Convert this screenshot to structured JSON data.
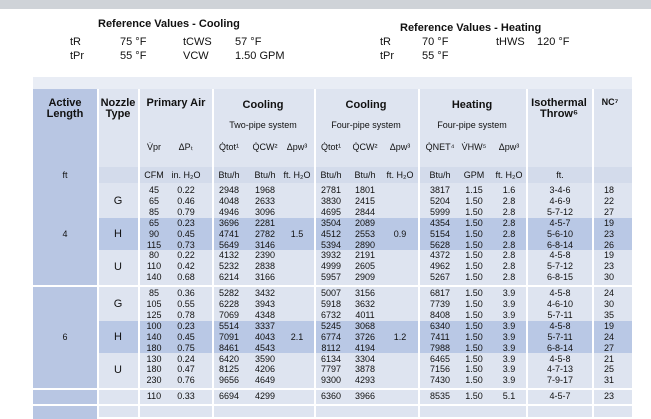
{
  "reference": {
    "cooling": {
      "title": "Reference Values - Cooling",
      "rows": [
        [
          "tR",
          "75 °F",
          "tCWS",
          "57 °F"
        ],
        [
          "tPr",
          "55 °F",
          "VCW",
          "1.50 GPM"
        ]
      ]
    },
    "heating": {
      "title": "Reference Values - Heating",
      "rows": [
        [
          "tR",
          "70 °F",
          "tHWS",
          "120 °F"
        ],
        [
          "tPr",
          "55 °F"
        ]
      ]
    }
  },
  "table": {
    "headers": {
      "length": "Active Length",
      "nozzle": "Nozzle Type",
      "primary": "Primary Air",
      "cooling_two": "Cooling",
      "cooling_four": "Cooling",
      "heating": "Heating",
      "throw": "Isothermal Throw⁶",
      "nc": "NC⁷"
    },
    "subheaders": {
      "cooling_two": "Two-pipe system",
      "cooling_four": "Four-pipe system",
      "heating": "Four-pipe system"
    },
    "symbols": [
      "V̇pr",
      "ΔPₜ",
      "Q̇tot¹",
      "Q̇CW²",
      "Δpw³",
      "Q̇tot¹",
      "Q̇CW²",
      "Δpw³",
      "Q̇NET⁴",
      "V̇HW⁵",
      "Δpw³"
    ],
    "units": [
      "ft",
      "CFM",
      "in. H₂O",
      "Btu/h",
      "Btu/h",
      "ft. H₂O",
      "Btu/h",
      "Btu/h",
      "ft. H₂O",
      "Btu/h",
      "GPM",
      "ft. H₂O",
      "ft."
    ],
    "groups": [
      {
        "length": "4",
        "dp_two": "1.5",
        "dp_four": "0.9",
        "nozzles": [
          {
            "type": "G",
            "rows": [
              [
                "45",
                "0.22",
                "2948",
                "1968",
                "2781",
                "1801",
                "3817",
                "1.15",
                "1.6",
                "3-4-6",
                "18"
              ],
              [
                "65",
                "0.46",
                "4048",
                "2633",
                "3830",
                "2415",
                "5204",
                "1.50",
                "2.8",
                "4-6-9",
                "22"
              ],
              [
                "85",
                "0.79",
                "4946",
                "3096",
                "4695",
                "2844",
                "5999",
                "1.50",
                "2.8",
                "5-7-12",
                "27"
              ]
            ]
          },
          {
            "type": "H",
            "rows": [
              [
                "65",
                "0.23",
                "3696",
                "2281",
                "3504",
                "2089",
                "4354",
                "1.50",
                "2.8",
                "4-5-7",
                "19"
              ],
              [
                "90",
                "0.45",
                "4741",
                "2782",
                "4512",
                "2553",
                "5154",
                "1.50",
                "2.8",
                "5-6-10",
                "23"
              ],
              [
                "115",
                "0.73",
                "5649",
                "3146",
                "5394",
                "2890",
                "5628",
                "1.50",
                "2.8",
                "6-8-14",
                "26"
              ]
            ]
          },
          {
            "type": "U",
            "rows": [
              [
                "80",
                "0.22",
                "4132",
                "2390",
                "3932",
                "2191",
                "4372",
                "1.50",
                "2.8",
                "4-5-8",
                "19"
              ],
              [
                "110",
                "0.42",
                "5232",
                "2838",
                "4999",
                "2605",
                "4962",
                "1.50",
                "2.8",
                "5-7-12",
                "23"
              ],
              [
                "140",
                "0.68",
                "6214",
                "3166",
                "5957",
                "2909",
                "5267",
                "1.50",
                "2.8",
                "6-8-15",
                "30"
              ]
            ]
          }
        ]
      },
      {
        "length": "6",
        "dp_two": "2.1",
        "dp_four": "1.2",
        "nozzles": [
          {
            "type": "G",
            "rows": [
              [
                "85",
                "0.36",
                "5282",
                "3432",
                "5007",
                "3156",
                "6817",
                "1.50",
                "3.9",
                "4-5-8",
                "24"
              ],
              [
                "105",
                "0.55",
                "6228",
                "3943",
                "5918",
                "3632",
                "7739",
                "1.50",
                "3.9",
                "4-6-10",
                "30"
              ],
              [
                "125",
                "0.78",
                "7069",
                "4348",
                "6732",
                "4011",
                "8408",
                "1.50",
                "3.9",
                "5-7-11",
                "35"
              ]
            ]
          },
          {
            "type": "H",
            "rows": [
              [
                "100",
                "0.23",
                "5514",
                "3337",
                "5245",
                "3068",
                "6340",
                "1.50",
                "3.9",
                "4-5-8",
                "19"
              ],
              [
                "140",
                "0.45",
                "7091",
                "4043",
                "6774",
                "3726",
                "7411",
                "1.50",
                "3.9",
                "5-7-11",
                "24"
              ],
              [
                "180",
                "0.75",
                "8461",
                "4543",
                "8112",
                "4194",
                "7988",
                "1.50",
                "3.9",
                "6-8-14",
                "27"
              ]
            ]
          },
          {
            "type": "U",
            "rows": [
              [
                "130",
                "0.24",
                "6420",
                "3590",
                "6134",
                "3304",
                "6465",
                "1.50",
                "3.9",
                "4-5-8",
                "21"
              ],
              [
                "180",
                "0.47",
                "8125",
                "4206",
                "7797",
                "3878",
                "7156",
                "1.50",
                "3.9",
                "4-7-13",
                "25"
              ],
              [
                "230",
                "0.76",
                "9656",
                "4649",
                "9300",
                "4293",
                "7430",
                "1.50",
                "3.9",
                "7-9-17",
                "31"
              ]
            ]
          }
        ]
      },
      {
        "nozzles": [
          {
            "rows": [
              [
                "110",
                "0.33",
                "6694",
                "4299",
                "6360",
                "3966",
                "8535",
                "1.50",
                "5.1",
                "4-5-7",
                "23"
              ]
            ]
          }
        ]
      }
    ]
  }
}
